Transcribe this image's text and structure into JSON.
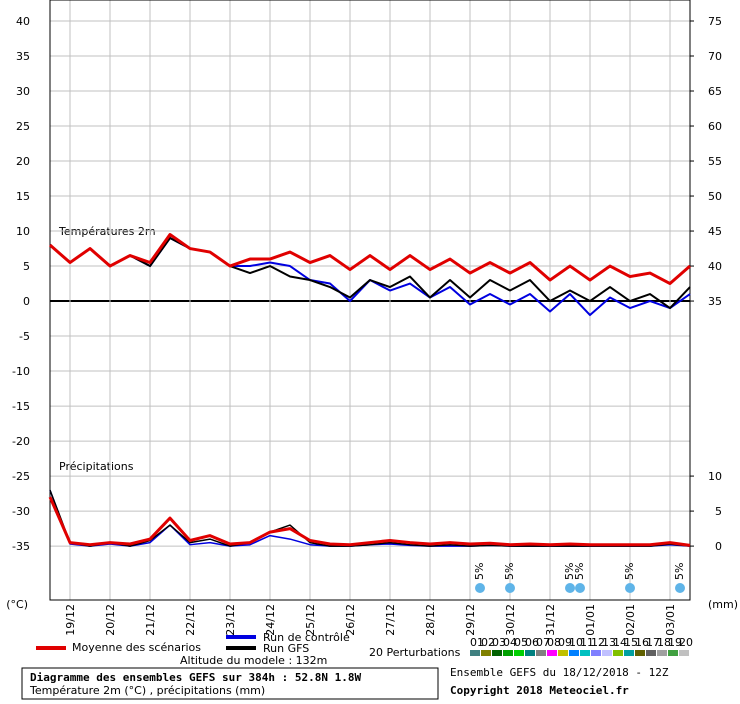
{
  "chart_data": {
    "type": "line",
    "xlim": [
      0,
      384
    ],
    "ylim": [
      -42.7,
      43
    ],
    "y2lim": [
      -7.7,
      78
    ],
    "yticks": [
      -35,
      -30,
      -25,
      -20,
      -15,
      -10,
      -5,
      0,
      5,
      10,
      15,
      20,
      25,
      30,
      35,
      40
    ],
    "y2ticks": [
      0,
      5,
      10,
      35,
      40,
      45,
      50,
      55,
      60,
      65,
      70,
      75
    ],
    "xticks": [
      {
        "value": 12,
        "label": "19/12"
      },
      {
        "value": 36,
        "label": "20/12"
      },
      {
        "value": 60,
        "label": "21/12"
      },
      {
        "value": 84,
        "label": "22/12"
      },
      {
        "value": 108,
        "label": "23/12"
      },
      {
        "value": 132,
        "label": "24/12"
      },
      {
        "value": 156,
        "label": "25/12"
      },
      {
        "value": 180,
        "label": "26/12"
      },
      {
        "value": 204,
        "label": "27/12"
      },
      {
        "value": 228,
        "label": "28/12"
      },
      {
        "value": 252,
        "label": "29/12"
      },
      {
        "value": 276,
        "label": "30/12"
      },
      {
        "value": 300,
        "label": "31/12"
      },
      {
        "value": 324,
        "label": "01/01"
      },
      {
        "value": 348,
        "label": "02/01"
      },
      {
        "value": 372,
        "label": "03/01"
      }
    ],
    "grid": true,
    "ylabel": "(°C)",
    "y2label": "(mm)",
    "temp_label": "Températures 2m",
    "precip_label": "Précipitations",
    "x": [
      0,
      12,
      24,
      36,
      48,
      60,
      72,
      84,
      96,
      108,
      120,
      132,
      144,
      156,
      168,
      180,
      192,
      204,
      216,
      228,
      240,
      252,
      264,
      276,
      288,
      300,
      312,
      324,
      336,
      348,
      360,
      372,
      384
    ],
    "series": [
      {
        "name": "Moyenne des scénarios",
        "color": "#e00000",
        "width": 3,
        "values": [
          8,
          5.5,
          7.5,
          5,
          6.5,
          5.5,
          9.5,
          7.5,
          7,
          5,
          6,
          6,
          7,
          5.5,
          6.5,
          4.5,
          6.5,
          4.5,
          6.5,
          4.5,
          6,
          4,
          5.5,
          4,
          5.5,
          3,
          5,
          3,
          5,
          3.5,
          4,
          2.5,
          5
        ]
      },
      {
        "name": "Run de contrôle",
        "color": "#0000e0",
        "width": 2,
        "values": [
          8,
          5.5,
          7.5,
          5,
          6.5,
          5,
          9,
          7.5,
          7,
          5,
          5,
          5.5,
          5,
          3,
          2.5,
          0,
          3,
          1.5,
          2.5,
          0.5,
          2,
          -0.5,
          1,
          -0.5,
          1,
          -1.5,
          1,
          -2,
          0.5,
          -1,
          0,
          -1,
          1
        ]
      },
      {
        "name": "Run GFS",
        "color": "#000000",
        "width": 2,
        "values": [
          8,
          5.5,
          7.5,
          5,
          6.5,
          5,
          9,
          7.5,
          7,
          5,
          4,
          5,
          3.5,
          3,
          2,
          0.5,
          3,
          2,
          3.5,
          0.5,
          3,
          0.5,
          3,
          1.5,
          3,
          0,
          1.5,
          0,
          2,
          0,
          1,
          -1,
          2
        ]
      },
      {
        "name": "Moyenne des scénarios",
        "color": "#e00000",
        "width": 3,
        "axis": "y2",
        "values": [
          7,
          0.5,
          0.2,
          0.5,
          0.3,
          1,
          4,
          0.8,
          1.5,
          0.3,
          0.5,
          2,
          2.5,
          0.8,
          0.3,
          0.2,
          0.5,
          0.8,
          0.5,
          0.3,
          0.5,
          0.3,
          0.4,
          0.2,
          0.3,
          0.2,
          0.3,
          0.2,
          0.2,
          0.2,
          0.2,
          0.5,
          0.1
        ]
      },
      {
        "name": "Run de contrôle",
        "color": "#0000e0",
        "width": 1.5,
        "axis": "y2",
        "values": [
          8,
          0.3,
          0,
          0.3,
          0,
          0.5,
          3,
          0.2,
          0.5,
          0,
          0.2,
          1.5,
          1,
          0.2,
          0,
          0,
          0.2,
          0.3,
          0.1,
          0,
          0,
          0,
          0.1,
          0,
          0,
          0,
          0,
          0,
          0,
          0,
          0,
          0.2,
          0
        ]
      },
      {
        "name": "Run GFS",
        "color": "#000000",
        "width": 1.5,
        "axis": "y2",
        "values": [
          8,
          0.5,
          0,
          0.5,
          0,
          0.8,
          3,
          0.5,
          1,
          0,
          0.5,
          2,
          3,
          0.5,
          0,
          0,
          0.2,
          0.5,
          0.2,
          0,
          0.2,
          0,
          0.1,
          0,
          0,
          0,
          0,
          0,
          0,
          0,
          0,
          0.3,
          0
        ]
      }
    ],
    "snow": [
      {
        "x": 258,
        "label": "5%"
      },
      {
        "x": 276,
        "label": "5%"
      },
      {
        "x": 312,
        "label": "5%"
      },
      {
        "x": 318,
        "label": "5%"
      },
      {
        "x": 348,
        "label": "5%"
      },
      {
        "x": 378,
        "label": "5%"
      }
    ],
    "altitude": "Altitude du modele : 132m",
    "perturbations_label": "20 Perturbations",
    "perturbations": [
      {
        "name": "01",
        "color": "#408080"
      },
      {
        "name": "02",
        "color": "#808000"
      },
      {
        "name": "03",
        "color": "#006000"
      },
      {
        "name": "04",
        "color": "#00a000"
      },
      {
        "name": "05",
        "color": "#00d000"
      },
      {
        "name": "06",
        "color": "#008080"
      },
      {
        "name": "07",
        "color": "#808080"
      },
      {
        "name": "08",
        "color": "#ff00ff"
      },
      {
        "name": "09",
        "color": "#c0c000"
      },
      {
        "name": "10",
        "color": "#0080ff"
      },
      {
        "name": "11",
        "color": "#00c0c0"
      },
      {
        "name": "12",
        "color": "#8080ff"
      },
      {
        "name": "13",
        "color": "#c0c0ff"
      },
      {
        "name": "14",
        "color": "#80c000"
      },
      {
        "name": "15",
        "color": "#00a0a0"
      },
      {
        "name": "16",
        "color": "#606000"
      },
      {
        "name": "17",
        "color": "#606060"
      },
      {
        "name": "18",
        "color": "#a0a0a0"
      },
      {
        "name": "19",
        "color": "#40a040"
      },
      {
        "name": "20",
        "color": "#c0c0c0"
      }
    ],
    "ensemble_info": "Ensemble GEFS du 18/12/2018 - 12Z",
    "title": "Diagramme des ensembles GEFS sur 384h : 52.8N 1.8W",
    "subtitle": "Température 2m (°C) , précipitations (mm)",
    "copyright": "Copyright 2018 Meteociel.fr"
  }
}
